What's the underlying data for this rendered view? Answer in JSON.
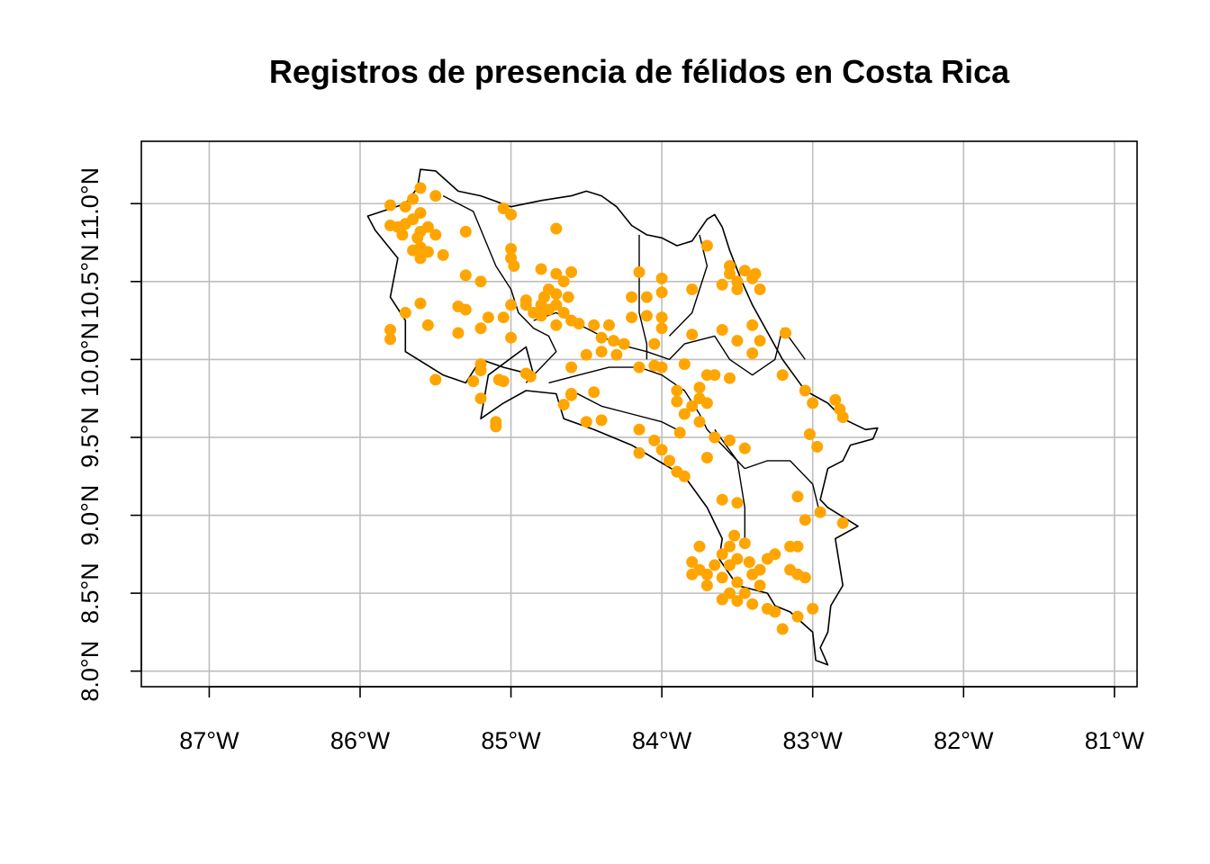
{
  "title": "Registros de presencia de félidos en Costa Rica",
  "colors": {
    "points": "#ffa500",
    "grid": "#bebebe",
    "outline": "#000000"
  },
  "chart_data": {
    "type": "scatter",
    "title": "Registros de presencia de félidos en Costa Rica",
    "xlim": [
      -87.45,
      -80.85
    ],
    "ylim": [
      7.9,
      11.4
    ],
    "grid": true,
    "x_ticks": [
      {
        "value": -87,
        "label": "87°W"
      },
      {
        "value": -86,
        "label": "86°W"
      },
      {
        "value": -85,
        "label": "85°W"
      },
      {
        "value": -84,
        "label": "84°W"
      },
      {
        "value": -83,
        "label": "83°W"
      },
      {
        "value": -82,
        "label": "82°W"
      },
      {
        "value": -81,
        "label": "81°W"
      }
    ],
    "y_ticks": [
      {
        "value": 8.0,
        "label": "8.0°N"
      },
      {
        "value": 8.5,
        "label": "8.5°N"
      },
      {
        "value": 9.0,
        "label": "9.0°N"
      },
      {
        "value": 9.5,
        "label": "9.5°N"
      },
      {
        "value": 10.0,
        "label": "10.0°N"
      },
      {
        "value": 10.5,
        "label": "10.5°N"
      },
      {
        "value": 11.0,
        "label": "11.0°N"
      }
    ],
    "outline": [
      [
        -85.6,
        11.22
      ],
      [
        -85.5,
        11.21
      ],
      [
        -85.35,
        11.08
      ],
      [
        -85.2,
        11.05
      ],
      [
        -85.0,
        10.98
      ],
      [
        -84.8,
        11.02
      ],
      [
        -84.6,
        11.05
      ],
      [
        -84.5,
        11.08
      ],
      [
        -84.4,
        11.05
      ],
      [
        -84.3,
        10.98
      ],
      [
        -84.2,
        10.86
      ],
      [
        -84.1,
        10.8
      ],
      [
        -84.0,
        10.78
      ],
      [
        -83.9,
        10.73
      ],
      [
        -83.8,
        10.76
      ],
      [
        -83.7,
        10.9
      ],
      [
        -83.65,
        10.93
      ],
      [
        -83.6,
        10.85
      ],
      [
        -83.55,
        10.7
      ],
      [
        -83.47,
        10.5
      ],
      [
        -83.4,
        10.35
      ],
      [
        -83.2,
        10.0
      ],
      [
        -83.05,
        9.8
      ],
      [
        -82.9,
        9.72
      ],
      [
        -82.8,
        9.62
      ],
      [
        -82.65,
        9.55
      ],
      [
        -82.57,
        9.56
      ],
      [
        -82.6,
        9.49
      ],
      [
        -82.75,
        9.45
      ],
      [
        -82.8,
        9.35
      ],
      [
        -82.9,
        9.3
      ],
      [
        -82.95,
        9.1
      ],
      [
        -82.9,
        9.05
      ],
      [
        -82.7,
        8.93
      ],
      [
        -82.85,
        8.85
      ],
      [
        -82.8,
        8.55
      ],
      [
        -82.88,
        8.42
      ],
      [
        -82.9,
        8.25
      ],
      [
        -82.95,
        8.15
      ],
      [
        -82.9,
        8.04
      ],
      [
        -82.98,
        8.07
      ],
      [
        -83.0,
        8.25
      ],
      [
        -83.15,
        8.38
      ],
      [
        -83.25,
        8.42
      ],
      [
        -83.3,
        8.5
      ],
      [
        -83.5,
        8.55
      ],
      [
        -83.62,
        8.72
      ],
      [
        -83.6,
        8.85
      ],
      [
        -83.7,
        9.05
      ],
      [
        -83.85,
        9.25
      ],
      [
        -84.2,
        9.45
      ],
      [
        -84.45,
        9.55
      ],
      [
        -84.65,
        9.62
      ],
      [
        -84.7,
        9.78
      ],
      [
        -84.9,
        9.8
      ],
      [
        -85.05,
        9.72
      ],
      [
        -85.2,
        9.62
      ],
      [
        -85.15,
        9.9
      ],
      [
        -84.9,
        10.08
      ],
      [
        -84.85,
        9.9
      ],
      [
        -85.05,
        9.95
      ],
      [
        -85.2,
        10.0
      ],
      [
        -85.3,
        9.85
      ],
      [
        -85.45,
        9.9
      ],
      [
        -85.7,
        10.05
      ],
      [
        -85.7,
        10.25
      ],
      [
        -85.8,
        10.4
      ],
      [
        -85.75,
        10.65
      ],
      [
        -85.9,
        10.83
      ],
      [
        -85.95,
        10.92
      ],
      [
        -85.7,
        11.0
      ],
      [
        -85.62,
        11.1
      ],
      [
        -85.6,
        11.22
      ]
    ],
    "regions": [
      [
        [
          -85.45,
          11.05
        ],
        [
          -85.35,
          11.0
        ],
        [
          -85.25,
          10.95
        ],
        [
          -85.1,
          10.6
        ],
        [
          -85.0,
          10.45
        ],
        [
          -84.95,
          10.3
        ],
        [
          -84.85,
          10.2
        ],
        [
          -84.75,
          10.15
        ],
        [
          -84.7,
          10.05
        ],
        [
          -84.8,
          9.95
        ],
        [
          -84.9,
          9.85
        ]
      ],
      [
        [
          -84.85,
          10.25
        ],
        [
          -84.7,
          10.3
        ],
        [
          -84.5,
          10.2
        ],
        [
          -84.3,
          10.1
        ],
        [
          -84.1,
          10.05
        ],
        [
          -83.95,
          10.0
        ],
        [
          -83.85,
          10.1
        ],
        [
          -83.65,
          10.15
        ],
        [
          -83.55,
          10.0
        ],
        [
          -83.4,
          9.9
        ],
        [
          -83.25,
          10.0
        ],
        [
          -83.2,
          10.2
        ],
        [
          -83.05,
          10.0
        ]
      ],
      [
        [
          -84.15,
          10.8
        ],
        [
          -84.15,
          10.5
        ],
        [
          -84.15,
          10.3
        ],
        [
          -84.1,
          10.1
        ],
        [
          -84.1,
          10.0
        ]
      ],
      [
        [
          -83.95,
          10.15
        ],
        [
          -83.8,
          10.3
        ],
        [
          -83.7,
          10.6
        ],
        [
          -83.75,
          10.8
        ]
      ],
      [
        [
          -84.75,
          9.85
        ],
        [
          -84.55,
          9.9
        ],
        [
          -84.35,
          9.95
        ],
        [
          -84.15,
          9.95
        ],
        [
          -84.0,
          9.9
        ],
        [
          -83.85,
          9.8
        ],
        [
          -83.75,
          9.65
        ],
        [
          -83.7,
          9.55
        ],
        [
          -83.6,
          9.45
        ],
        [
          -83.5,
          9.35
        ],
        [
          -83.45,
          9.3
        ]
      ],
      [
        [
          -83.45,
          9.3
        ],
        [
          -83.3,
          9.35
        ],
        [
          -83.15,
          9.35
        ],
        [
          -83.0,
          9.2
        ],
        [
          -82.95,
          9.0
        ]
      ],
      [
        [
          -84.6,
          9.8
        ],
        [
          -84.4,
          9.7
        ],
        [
          -84.2,
          9.65
        ],
        [
          -84.0,
          9.6
        ],
        [
          -83.9,
          9.55
        ]
      ],
      [
        [
          -83.65,
          9.55
        ],
        [
          -83.5,
          9.35
        ],
        [
          -83.45,
          9.05
        ],
        [
          -83.45,
          8.85
        ]
      ]
    ],
    "points": [
      [
        -85.8,
        10.99
      ],
      [
        -85.6,
        11.1
      ],
      [
        -85.5,
        11.05
      ],
      [
        -85.65,
        11.03
      ],
      [
        -85.7,
        10.98
      ],
      [
        -85.6,
        10.94
      ],
      [
        -85.65,
        10.9
      ],
      [
        -85.75,
        10.85
      ],
      [
        -85.7,
        10.87
      ],
      [
        -85.6,
        10.82
      ],
      [
        -85.55,
        10.85
      ],
      [
        -85.8,
        10.86
      ],
      [
        -85.72,
        10.8
      ],
      [
        -85.62,
        10.78
      ],
      [
        -85.5,
        10.8
      ],
      [
        -85.3,
        10.82
      ],
      [
        -85.6,
        10.72
      ],
      [
        -85.65,
        10.7
      ],
      [
        -85.55,
        10.69
      ],
      [
        -85.6,
        10.65
      ],
      [
        -85.45,
        10.67
      ],
      [
        -85.3,
        10.54
      ],
      [
        -85.2,
        10.5
      ],
      [
        -85.35,
        10.34
      ],
      [
        -85.3,
        10.32
      ],
      [
        -85.6,
        10.36
      ],
      [
        -85.7,
        10.3
      ],
      [
        -85.55,
        10.22
      ],
      [
        -85.8,
        10.19
      ],
      [
        -85.8,
        10.13
      ],
      [
        -85.35,
        10.17
      ],
      [
        -85.2,
        10.2
      ],
      [
        -85.15,
        10.27
      ],
      [
        -85.0,
        10.14
      ],
      [
        -85.2,
        9.97
      ],
      [
        -85.2,
        9.93
      ],
      [
        -85.25,
        9.86
      ],
      [
        -85.2,
        9.75
      ],
      [
        -85.5,
        9.87
      ],
      [
        -85.08,
        9.87
      ],
      [
        -85.05,
        9.86
      ],
      [
        -84.9,
        9.91
      ],
      [
        -84.87,
        9.89
      ],
      [
        -85.1,
        9.6
      ],
      [
        -85.1,
        9.57
      ],
      [
        -85.05,
        10.97
      ],
      [
        -85.0,
        10.93
      ],
      [
        -85.0,
        10.71
      ],
      [
        -85.0,
        10.65
      ],
      [
        -84.98,
        10.6
      ],
      [
        -85.0,
        10.35
      ],
      [
        -85.05,
        10.27
      ],
      [
        -84.7,
        10.84
      ],
      [
        -84.8,
        10.58
      ],
      [
        -84.7,
        10.55
      ],
      [
        -84.6,
        10.56
      ],
      [
        -84.65,
        10.5
      ],
      [
        -84.75,
        10.45
      ],
      [
        -84.7,
        10.42
      ],
      [
        -84.78,
        10.4
      ],
      [
        -84.8,
        10.35
      ],
      [
        -84.75,
        10.32
      ],
      [
        -84.7,
        10.35
      ],
      [
        -84.65,
        10.3
      ],
      [
        -84.62,
        10.4
      ],
      [
        -84.85,
        10.3
      ],
      [
        -84.9,
        10.35
      ],
      [
        -84.6,
        10.25
      ],
      [
        -84.7,
        10.22
      ],
      [
        -84.8,
        10.28
      ],
      [
        -84.9,
        10.38
      ],
      [
        -84.55,
        10.23
      ],
      [
        -84.45,
        10.22
      ],
      [
        -84.35,
        10.22
      ],
      [
        -84.4,
        10.14
      ],
      [
        -84.32,
        10.12
      ],
      [
        -84.25,
        10.1
      ],
      [
        -84.4,
        10.05
      ],
      [
        -84.5,
        10.03
      ],
      [
        -84.3,
        10.03
      ],
      [
        -84.6,
        9.95
      ],
      [
        -84.15,
        9.95
      ],
      [
        -84.2,
        10.4
      ],
      [
        -84.1,
        10.4
      ],
      [
        -84.15,
        10.56
      ],
      [
        -84.2,
        10.27
      ],
      [
        -84.1,
        10.28
      ],
      [
        -84.0,
        10.27
      ],
      [
        -84.0,
        10.43
      ],
      [
        -84.0,
        10.52
      ],
      [
        -84.0,
        10.2
      ],
      [
        -84.05,
        9.96
      ],
      [
        -84.0,
        9.95
      ],
      [
        -84.05,
        10.1
      ],
      [
        -84.6,
        9.78
      ],
      [
        -84.6,
        9.77
      ],
      [
        -84.45,
        9.79
      ],
      [
        -84.65,
        9.71
      ],
      [
        -84.5,
        9.6
      ],
      [
        -84.4,
        9.61
      ],
      [
        -84.15,
        9.55
      ],
      [
        -84.15,
        9.4
      ],
      [
        -84.05,
        9.48
      ],
      [
        -84.0,
        9.42
      ],
      [
        -83.95,
        9.35
      ],
      [
        -83.9,
        9.28
      ],
      [
        -83.85,
        9.25
      ],
      [
        -83.8,
        9.7
      ],
      [
        -83.9,
        9.73
      ],
      [
        -83.75,
        9.75
      ],
      [
        -83.7,
        9.72
      ],
      [
        -83.85,
        9.65
      ],
      [
        -83.75,
        9.6
      ],
      [
        -83.65,
        9.5
      ],
      [
        -83.55,
        9.48
      ],
      [
        -83.45,
        9.43
      ],
      [
        -83.6,
        9.1
      ],
      [
        -83.5,
        9.08
      ],
      [
        -83.7,
        9.37
      ],
      [
        -83.88,
        9.53
      ],
      [
        -83.9,
        9.8
      ],
      [
        -83.85,
        9.97
      ],
      [
        -83.65,
        9.9
      ],
      [
        -83.55,
        9.88
      ],
      [
        -83.75,
        9.82
      ],
      [
        -83.7,
        9.9
      ],
      [
        -83.55,
        10.55
      ],
      [
        -83.45,
        10.57
      ],
      [
        -83.5,
        10.5
      ],
      [
        -83.4,
        10.52
      ],
      [
        -83.35,
        10.45
      ],
      [
        -83.5,
        10.45
      ],
      [
        -83.6,
        10.48
      ],
      [
        -83.55,
        10.6
      ],
      [
        -83.38,
        10.55
      ],
      [
        -83.4,
        10.22
      ],
      [
        -83.35,
        10.12
      ],
      [
        -83.4,
        10.04
      ],
      [
        -83.5,
        10.12
      ],
      [
        -83.6,
        10.19
      ],
      [
        -83.8,
        10.45
      ],
      [
        -83.7,
        10.73
      ],
      [
        -83.8,
        10.16
      ],
      [
        -83.18,
        10.17
      ],
      [
        -83.2,
        9.9
      ],
      [
        -83.05,
        9.8
      ],
      [
        -83.0,
        9.72
      ],
      [
        -83.02,
        9.52
      ],
      [
        -82.97,
        9.44
      ],
      [
        -82.85,
        9.74
      ],
      [
        -82.82,
        9.68
      ],
      [
        -82.8,
        9.63
      ],
      [
        -83.1,
        9.12
      ],
      [
        -83.05,
        8.97
      ],
      [
        -82.95,
        9.02
      ],
      [
        -82.8,
        8.95
      ],
      [
        -83.8,
        8.7
      ],
      [
        -83.75,
        8.8
      ],
      [
        -83.8,
        8.62
      ],
      [
        -83.7,
        8.62
      ],
      [
        -83.6,
        8.6
      ],
      [
        -83.5,
        8.57
      ],
      [
        -83.6,
        8.75
      ],
      [
        -83.55,
        8.8
      ],
      [
        -83.45,
        8.82
      ],
      [
        -83.5,
        8.72
      ],
      [
        -83.42,
        8.7
      ],
      [
        -83.55,
        8.68
      ],
      [
        -83.4,
        8.62
      ],
      [
        -83.35,
        8.65
      ],
      [
        -83.3,
        8.72
      ],
      [
        -83.25,
        8.75
      ],
      [
        -83.35,
        8.55
      ],
      [
        -83.45,
        8.5
      ],
      [
        -83.55,
        8.5
      ],
      [
        -83.6,
        8.46
      ],
      [
        -83.5,
        8.45
      ],
      [
        -83.4,
        8.43
      ],
      [
        -83.3,
        8.4
      ],
      [
        -83.25,
        8.38
      ],
      [
        -83.15,
        8.8
      ],
      [
        -83.1,
        8.8
      ],
      [
        -83.15,
        8.65
      ],
      [
        -83.1,
        8.62
      ],
      [
        -83.05,
        8.6
      ],
      [
        -83.1,
        8.35
      ],
      [
        -83.2,
        8.27
      ],
      [
        -83.0,
        8.4
      ],
      [
        -83.65,
        8.68
      ],
      [
        -83.7,
        8.55
      ],
      [
        -83.52,
        8.87
      ],
      [
        -83.75,
        8.65
      ]
    ]
  }
}
